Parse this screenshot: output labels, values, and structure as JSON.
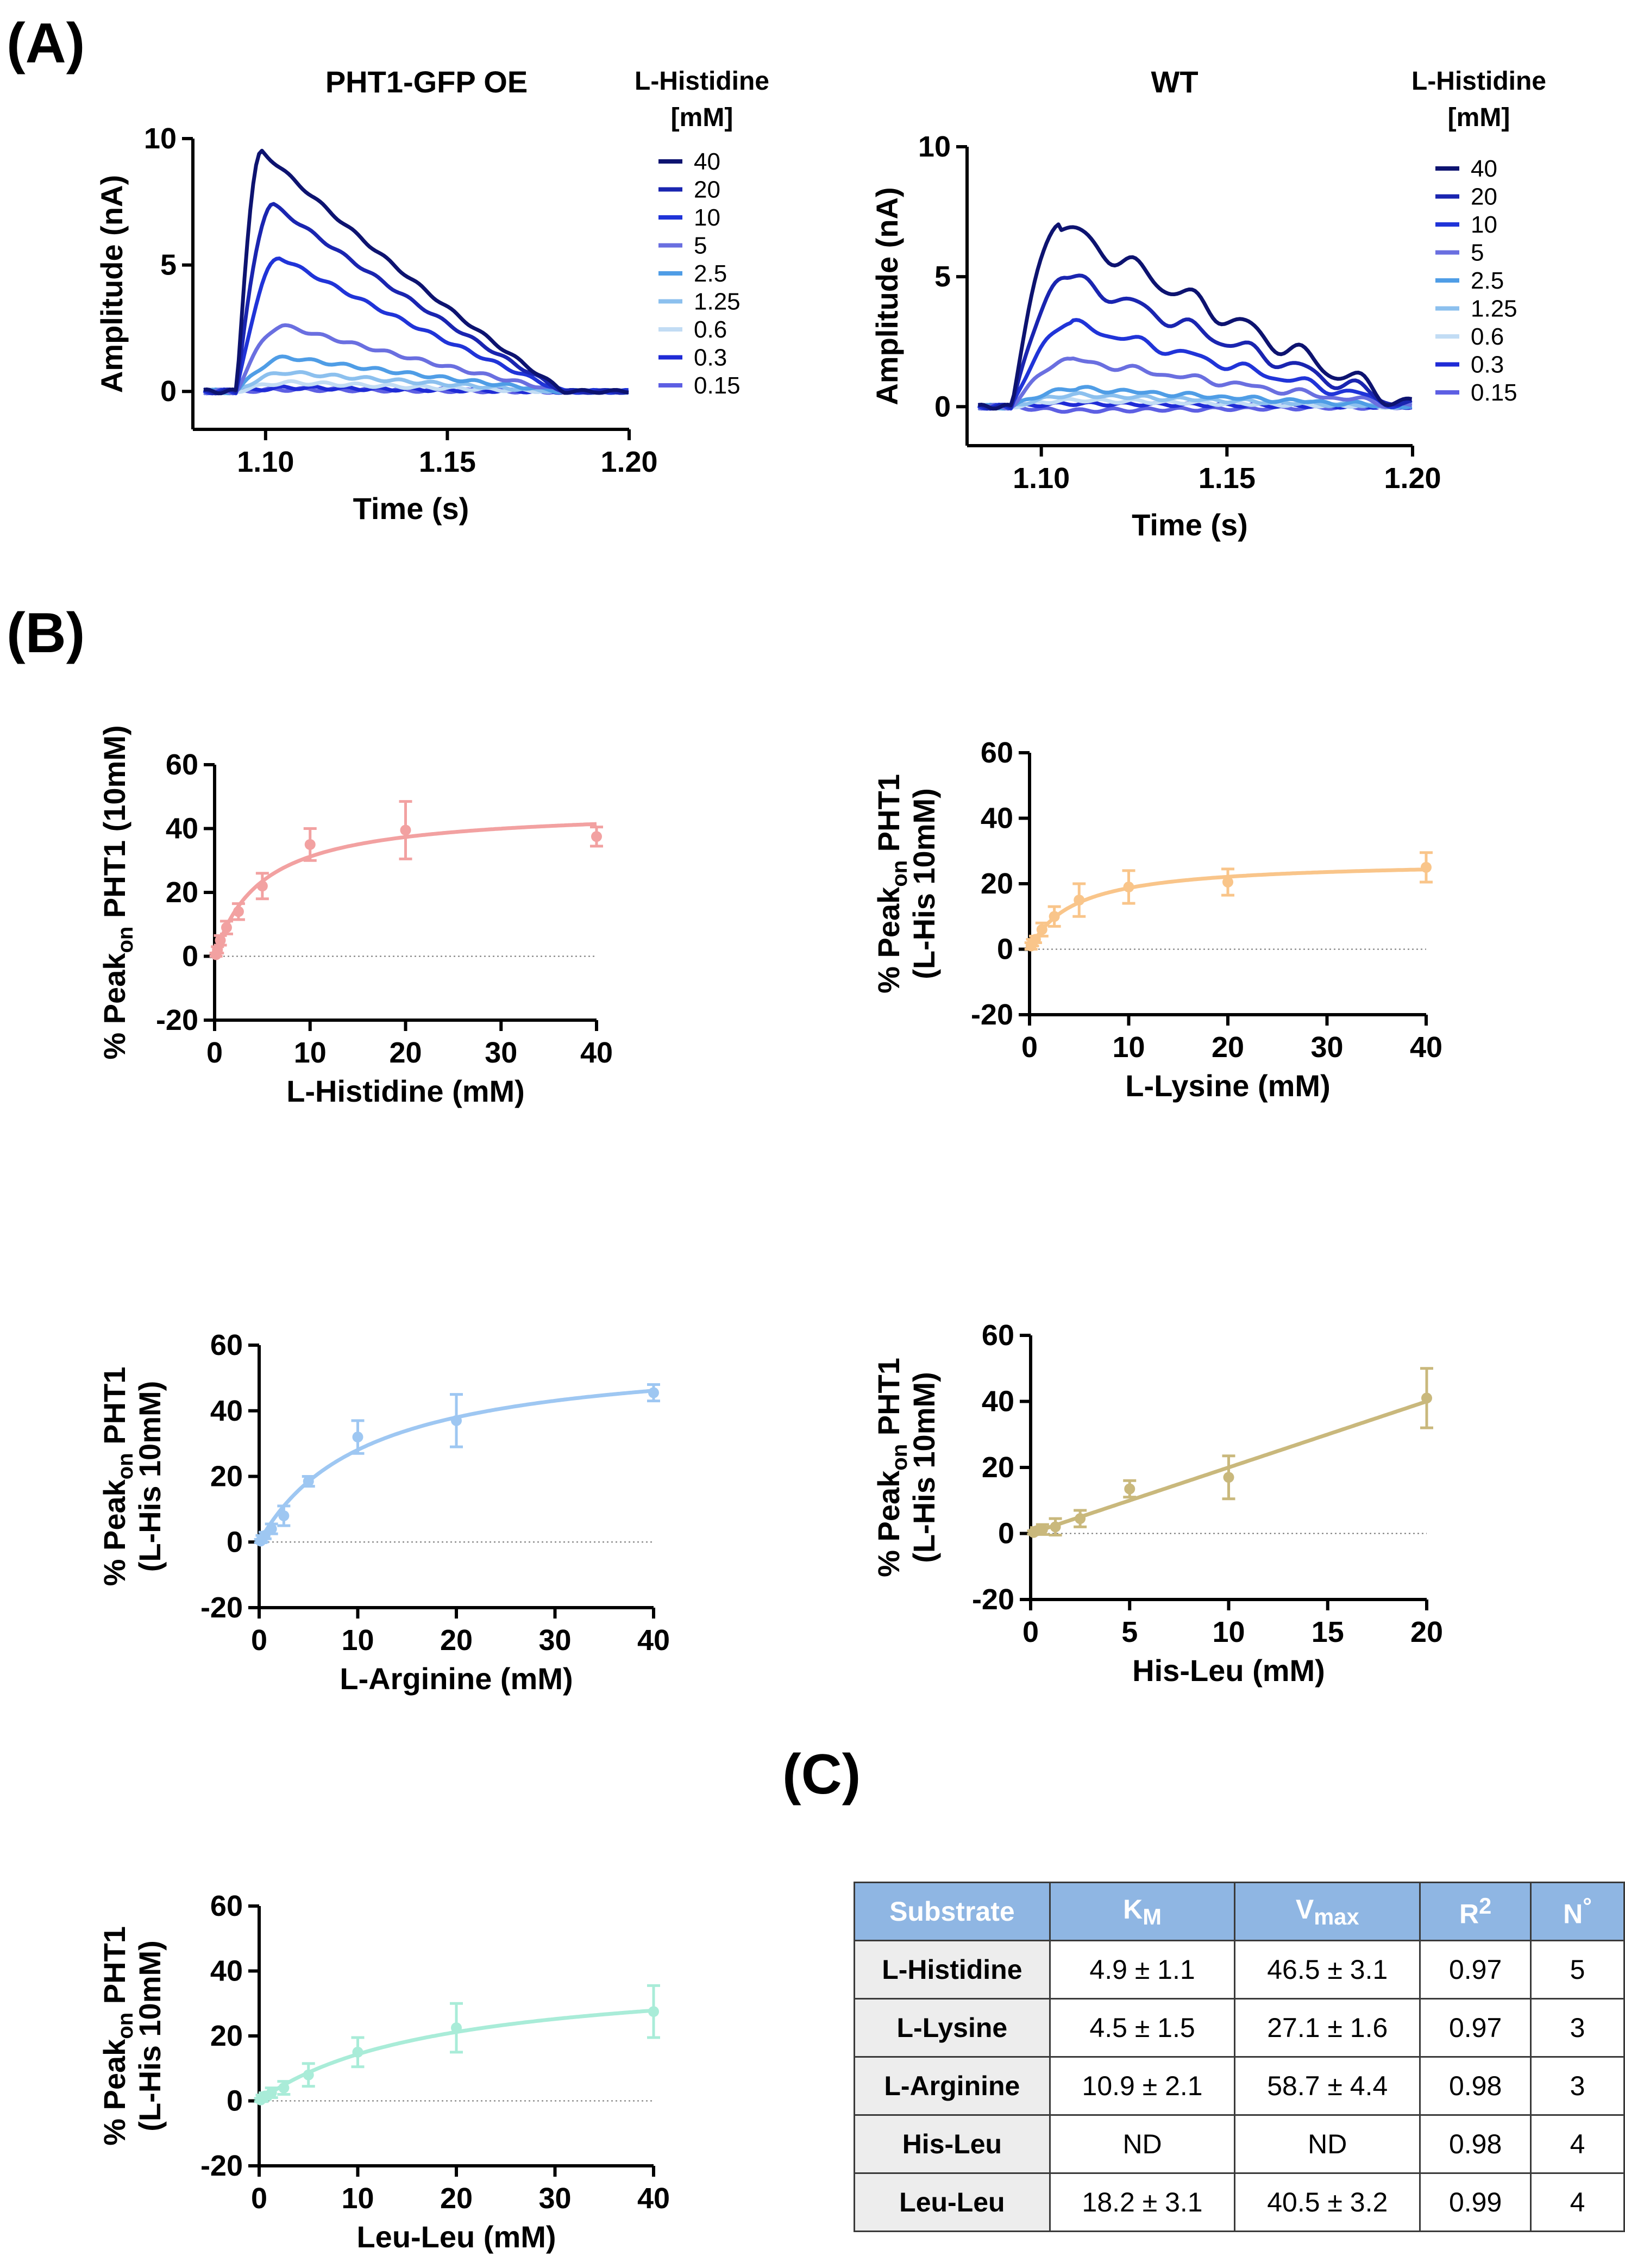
{
  "figure_labels": {
    "A": "(A)",
    "B": "(B)",
    "C": "(C)"
  },
  "chart_data": [
    {
      "id": "A1",
      "type": "line",
      "title": "PHT1-GFP OE",
      "xlabel": "Time (s)",
      "ylabel": "Amplitude (nA)",
      "xlim": [
        1.08,
        1.2
      ],
      "ylim": [
        -1.5,
        10
      ],
      "xticks": [
        1.1,
        1.15,
        1.2
      ],
      "xtick_labels": [
        "1.10",
        "1.15",
        "1.20"
      ],
      "yticks": [
        0,
        5,
        10
      ],
      "ytick_labels": [
        "0",
        "5",
        "10"
      ],
      "legend_title": "L-Histidine\n[mM]",
      "legend_title_lines": [
        "L-Histidine",
        "[mM]"
      ],
      "series": [
        {
          "name": "40",
          "color": "#0d1370",
          "peak": 9.5,
          "tpeak": 1.099
        },
        {
          "name": "20",
          "color": "#1a25b0",
          "peak": 7.4,
          "tpeak": 1.102
        },
        {
          "name": "10",
          "color": "#2034d8",
          "peak": 5.3,
          "tpeak": 1.104
        },
        {
          "name": "5",
          "color": "#6a6fe0",
          "peak": 2.6,
          "tpeak": 1.105
        },
        {
          "name": "2.5",
          "color": "#4f9de6",
          "peak": 1.35,
          "tpeak": 1.106
        },
        {
          "name": "1.25",
          "color": "#8cc0ee",
          "peak": 0.75,
          "tpeak": 1.106
        },
        {
          "name": "0.6",
          "color": "#c2dcf4",
          "peak": 0.35,
          "tpeak": 1.107
        },
        {
          "name": "0.3",
          "color": "#1f2bd6",
          "peak": 0.15,
          "tpeak": 1.108
        },
        {
          "name": "0.15",
          "color": "#5d5fe3",
          "peak": 0.08,
          "tpeak": 1.108
        }
      ]
    },
    {
      "id": "A2",
      "type": "line",
      "title": "WT",
      "xlabel": "Time (s)",
      "ylabel": "Amplitude (nA)",
      "xlim": [
        1.08,
        1.2
      ],
      "ylim": [
        -1.5,
        10
      ],
      "xticks": [
        1.1,
        1.15,
        1.2
      ],
      "xtick_labels": [
        "1.10",
        "1.15",
        "1.20"
      ],
      "yticks": [
        0,
        5,
        10
      ],
      "ytick_labels": [
        "0",
        "5",
        "10"
      ],
      "legend_title": "L-Histidine\n[mM]",
      "legend_title_lines": [
        "L-Histidine",
        "[mM]"
      ],
      "series": [
        {
          "name": "40",
          "color": "#0d1370",
          "peak": 7.0,
          "tpeak": 1.105
        },
        {
          "name": "20",
          "color": "#1a25b0",
          "peak": 5.0,
          "tpeak": 1.107
        },
        {
          "name": "10",
          "color": "#2034d8",
          "peak": 3.2,
          "tpeak": 1.108
        },
        {
          "name": "5",
          "color": "#6a6fe0",
          "peak": 1.8,
          "tpeak": 1.108
        },
        {
          "name": "2.5",
          "color": "#4f9de6",
          "peak": 0.7,
          "tpeak": 1.11
        },
        {
          "name": "1.25",
          "color": "#8cc0ee",
          "peak": 0.45,
          "tpeak": 1.11
        },
        {
          "name": "0.6",
          "color": "#c2dcf4",
          "peak": 0.25,
          "tpeak": 1.11
        },
        {
          "name": "0.3",
          "color": "#1f2bd6",
          "peak": 0.12,
          "tpeak": 1.11
        },
        {
          "name": "0.15",
          "color": "#5d5fe3",
          "peak": -0.15,
          "tpeak": 1.11
        }
      ]
    },
    {
      "id": "B1",
      "type": "scatter",
      "fit": "michaelis-menten",
      "color": "#f2a1a1",
      "ylabel_lines": [
        "% Peak",
        "on",
        " PHT1 (10mM)"
      ],
      "xlabel": "L-Histidine (mM)",
      "xlim": [
        0,
        40
      ],
      "ylim": [
        -20,
        60
      ],
      "xticks": [
        0,
        10,
        20,
        30,
        40
      ],
      "yticks": [
        -20,
        0,
        20,
        40,
        60
      ],
      "km": 4.9,
      "vmax": 46.5,
      "x": [
        0.15,
        0.3,
        0.6,
        1.25,
        2.5,
        5,
        10,
        20,
        40
      ],
      "y": [
        0.5,
        2,
        5,
        9,
        14,
        22,
        35,
        39.5,
        37.5
      ],
      "err": [
        0.5,
        1,
        1.5,
        2,
        2.5,
        4,
        5,
        9,
        3
      ]
    },
    {
      "id": "B2",
      "type": "scatter",
      "fit": "michaelis-menten",
      "color": "#f9c58a",
      "ylabel_lines": [
        "% Peak",
        "on",
        " PHT1",
        "(L-His 10mM)"
      ],
      "xlabel": "L-Lysine (mM)",
      "xlim": [
        0,
        40
      ],
      "ylim": [
        -20,
        60
      ],
      "xticks": [
        0,
        10,
        20,
        30,
        40
      ],
      "yticks": [
        -20,
        0,
        20,
        40,
        60
      ],
      "km": 4.5,
      "vmax": 27.1,
      "x": [
        0.15,
        0.3,
        0.6,
        1.25,
        2.5,
        5,
        10,
        20,
        40
      ],
      "y": [
        1,
        2,
        3,
        6,
        10,
        15,
        19,
        20.5,
        25
      ],
      "err": [
        1,
        1,
        1,
        2,
        3,
        5,
        5,
        4,
        4.5
      ]
    },
    {
      "id": "B3",
      "type": "scatter",
      "fit": "michaelis-menten",
      "color": "#9ec7f2",
      "ylabel_lines": [
        "% Peak",
        "on",
        " PHT1",
        "(L-His 10mM)"
      ],
      "xlabel": "L-Arginine (mM)",
      "xlim": [
        0,
        40
      ],
      "ylim": [
        -20,
        60
      ],
      "xticks": [
        0,
        10,
        20,
        30,
        40
      ],
      "yticks": [
        -20,
        0,
        20,
        40,
        60
      ],
      "km": 10.9,
      "vmax": 58.7,
      "x": [
        0.15,
        0.3,
        0.6,
        1.25,
        2.5,
        5,
        10,
        20,
        40
      ],
      "y": [
        0.3,
        1,
        2,
        4,
        8,
        18.5,
        32,
        37,
        45.5
      ],
      "err": [
        0.5,
        1,
        1,
        1.5,
        3,
        1.5,
        5,
        8,
        2.5
      ]
    },
    {
      "id": "B4",
      "type": "scatter",
      "fit": "linear",
      "color": "#c9b87c",
      "ylabel_lines": [
        "% Peak",
        "on",
        " PHT1",
        "(L-His 10mM)"
      ],
      "xlabel": "His-Leu (mM)",
      "xlim": [
        0,
        20
      ],
      "ylim": [
        -20,
        60
      ],
      "xticks": [
        0,
        5,
        10,
        15,
        20
      ],
      "yticks": [
        -20,
        0,
        20,
        40,
        60
      ],
      "slope": 2.0,
      "intercept": 0,
      "x": [
        0.15,
        0.3,
        0.6,
        1.25,
        2.5,
        5,
        10,
        20
      ],
      "y": [
        0.3,
        0.8,
        1.2,
        2,
        4.5,
        13.5,
        17,
        41
      ],
      "err": [
        0.5,
        1,
        1.5,
        2.5,
        2.5,
        2.5,
        6.5,
        9
      ]
    },
    {
      "id": "B5",
      "type": "scatter",
      "fit": "michaelis-menten",
      "color": "#a9ecd8",
      "ylabel_lines": [
        "% Peak",
        "on",
        " PHT1",
        "(L-His 10mM)"
      ],
      "xlabel": "Leu-Leu (mM)",
      "xlim": [
        0,
        40
      ],
      "ylim": [
        -20,
        60
      ],
      "xticks": [
        0,
        10,
        20,
        30,
        40
      ],
      "yticks": [
        -20,
        0,
        20,
        40,
        60
      ],
      "km": 18.2,
      "vmax": 40.5,
      "x": [
        0.15,
        0.3,
        0.6,
        1.25,
        2.5,
        5,
        10,
        20,
        40
      ],
      "y": [
        0.3,
        0.8,
        1.5,
        2.5,
        4,
        8,
        15,
        22.5,
        27.5
      ],
      "err": [
        0.5,
        1,
        1,
        1.5,
        2,
        3.5,
        4.5,
        7.5,
        8
      ]
    }
  ],
  "table": {
    "headers": [
      {
        "main": "Substrate",
        "sub": "",
        "sup": ""
      },
      {
        "main": "K",
        "sub": "M",
        "sup": ""
      },
      {
        "main": "V",
        "sub": "max",
        "sup": ""
      },
      {
        "main": "R",
        "sub": "",
        "sup": "2"
      },
      {
        "main": "N",
        "sub": "",
        "sup": "°"
      }
    ],
    "rows": [
      [
        "L-Histidine",
        "4.9 ± 1.1",
        "46.5 ± 3.1",
        "0.97",
        "5"
      ],
      [
        "L-Lysine",
        "4.5 ± 1.5",
        "27.1 ± 1.6",
        "0.97",
        "3"
      ],
      [
        "L-Arginine",
        "10.9 ± 2.1",
        "58.7 ± 4.4",
        "0.98",
        "3"
      ],
      [
        "His-Leu",
        "ND",
        "ND",
        "0.98",
        "4"
      ],
      [
        "Leu-Leu",
        "18.2 ± 3.1",
        "40.5 ± 3.2",
        "0.99",
        "4"
      ]
    ]
  }
}
